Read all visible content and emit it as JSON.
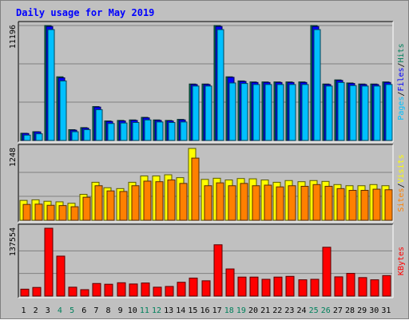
{
  "title": "Daily usage for May 2019",
  "colors": {
    "background": "#c0c0c0",
    "panel": "#c0c0c0",
    "title": "#0000ff",
    "hits": "#00805c",
    "files": "#0000ff",
    "pages": "#00c0ff",
    "visits": "#ffff00",
    "sites": "#ff8000",
    "kbytes": "#ff0000",
    "weekend_label": "#00805c",
    "weekday_label": "#000000"
  },
  "chart_data": [
    {
      "type": "bar",
      "panel": "hits_files_pages",
      "ymax_label": "11196",
      "ylim": [
        0,
        11196
      ],
      "legend": [
        "Pages",
        "Files",
        "Hits"
      ],
      "categories": [
        "1",
        "2",
        "3",
        "4",
        "5",
        "6",
        "7",
        "8",
        "9",
        "10",
        "11",
        "12",
        "13",
        "14",
        "15",
        "16",
        "17",
        "18",
        "19",
        "20",
        "21",
        "22",
        "23",
        "24",
        "25",
        "26",
        "27",
        "28",
        "29",
        "30",
        "31"
      ],
      "series": [
        {
          "name": "Hits",
          "values": [
            700,
            850,
            11196,
            6200,
            1050,
            1250,
            3300,
            1900,
            1950,
            2000,
            2250,
            2000,
            1950,
            2050,
            5500,
            5500,
            11196,
            6200,
            5800,
            5700,
            5700,
            5700,
            5700,
            5700,
            11196,
            5500,
            5900,
            5600,
            5500,
            5500,
            5700
          ]
        },
        {
          "name": "Files",
          "values": [
            680,
            830,
            11100,
            6100,
            1000,
            1200,
            3250,
            1850,
            1900,
            1950,
            2200,
            1950,
            1900,
            2000,
            5450,
            5450,
            11100,
            6150,
            5750,
            5650,
            5650,
            5650,
            5650,
            5650,
            11100,
            5450,
            5850,
            5550,
            5450,
            5450,
            5650
          ]
        },
        {
          "name": "Pages",
          "values": [
            520,
            650,
            10800,
            5800,
            850,
            1050,
            3000,
            1650,
            1700,
            1750,
            2000,
            1800,
            1750,
            1800,
            5300,
            5300,
            10800,
            5600,
            5550,
            5450,
            5450,
            5450,
            5450,
            5450,
            10800,
            5300,
            5650,
            5350,
            5300,
            5300,
            5450
          ]
        }
      ]
    },
    {
      "type": "bar",
      "panel": "visits_sites",
      "ymax_label": "1248",
      "ylim": [
        0,
        1248
      ],
      "legend": [
        "Sites",
        "Visits"
      ],
      "series": [
        {
          "name": "Visits",
          "values": [
            345,
            355,
            330,
            320,
            295,
            450,
            660,
            565,
            550,
            660,
            770,
            770,
            790,
            740,
            1248,
            710,
            730,
            700,
            725,
            720,
            700,
            660,
            690,
            670,
            690,
            675,
            620,
            600,
            600,
            620,
            600
          ]
        },
        {
          "name": "Sites",
          "values": [
            275,
            280,
            260,
            255,
            235,
            400,
            600,
            510,
            500,
            600,
            680,
            670,
            700,
            640,
            1080,
            600,
            650,
            600,
            640,
            600,
            610,
            580,
            600,
            590,
            620,
            590,
            550,
            520,
            520,
            540,
            530
          ]
        }
      ]
    },
    {
      "type": "bar",
      "panel": "kbytes",
      "ymax_label": "137554",
      "ylim": [
        0,
        137554
      ],
      "legend": [
        "KBytes"
      ],
      "series": [
        {
          "name": "KBytes",
          "values": [
            14000,
            17500,
            137554,
            81000,
            18000,
            13000,
            25500,
            24000,
            27000,
            24500,
            26500,
            18000,
            19500,
            28000,
            36500,
            31000,
            104000,
            55000,
            38500,
            38500,
            34000,
            38500,
            40000,
            33000,
            34000,
            99000,
            39000,
            46000,
            37500,
            33000,
            41500
          ]
        }
      ]
    }
  ],
  "weekend_days": [
    "4",
    "5",
    "11",
    "12",
    "18",
    "19",
    "25",
    "26"
  ]
}
